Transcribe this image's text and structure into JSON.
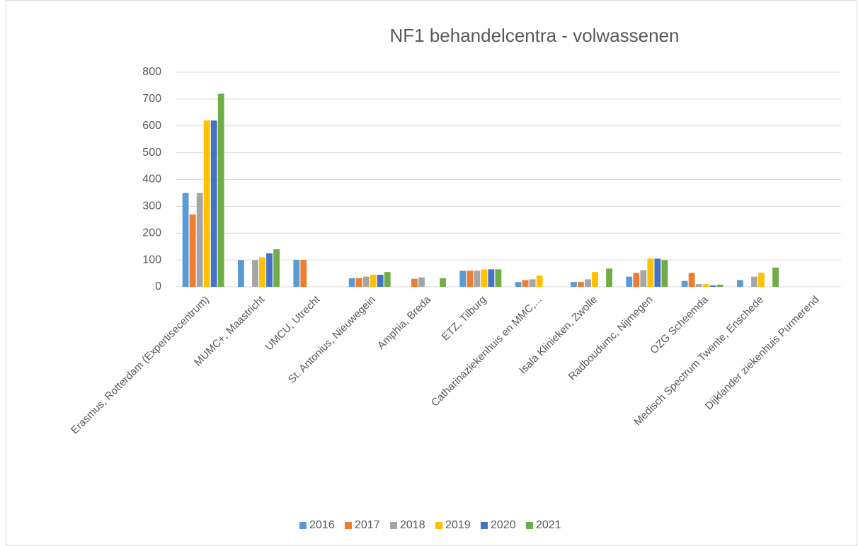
{
  "chart_data": {
    "type": "bar",
    "title": "NF1 behandelcentra - volwassenen",
    "categories": [
      "Erasmus, Rotterdam (Expertisecentrum)",
      "MUMC+, Maastricht",
      "UMCU, Utrecht",
      "St. Antonius, Nieuwegein",
      "Amphia, Breda",
      "ETZ, Tilburg",
      "Catharinaziekenhuis en MMC,...",
      "Isala Klinieken, Zwolle",
      "Radboudumc, Nijmegen",
      "OZG Scheemda",
      "Medisch Spectrum Twente, Enschede",
      "Dijklander ziekenhuis Purmerend"
    ],
    "series": [
      {
        "name": "2016",
        "color": "#5b9bd5",
        "values": [
          350,
          100,
          100,
          32,
          null,
          60,
          18,
          18,
          38,
          22,
          25,
          null
        ]
      },
      {
        "name": "2017",
        "color": "#ed7d31",
        "values": [
          270,
          null,
          100,
          32,
          30,
          60,
          25,
          18,
          52,
          52,
          null,
          null
        ]
      },
      {
        "name": "2018",
        "color": "#a5a5a5",
        "values": [
          350,
          100,
          null,
          38,
          35,
          60,
          28,
          28,
          62,
          10,
          38,
          null
        ]
      },
      {
        "name": "2019",
        "color": "#ffc000",
        "values": [
          620,
          110,
          null,
          45,
          null,
          65,
          42,
          55,
          105,
          10,
          52,
          null
        ]
      },
      {
        "name": "2020",
        "color": "#4472c4",
        "values": [
          620,
          125,
          null,
          45,
          null,
          65,
          null,
          null,
          105,
          5,
          null,
          null
        ]
      },
      {
        "name": "2021",
        "color": "#70ad47",
        "values": [
          720,
          140,
          null,
          55,
          32,
          65,
          null,
          68,
          100,
          8,
          72,
          null
        ]
      }
    ],
    "ylim": [
      0,
      800
    ],
    "yticks": [
      0,
      100,
      200,
      300,
      400,
      500,
      600,
      700,
      800
    ],
    "grid": true,
    "legend": "bottom"
  }
}
